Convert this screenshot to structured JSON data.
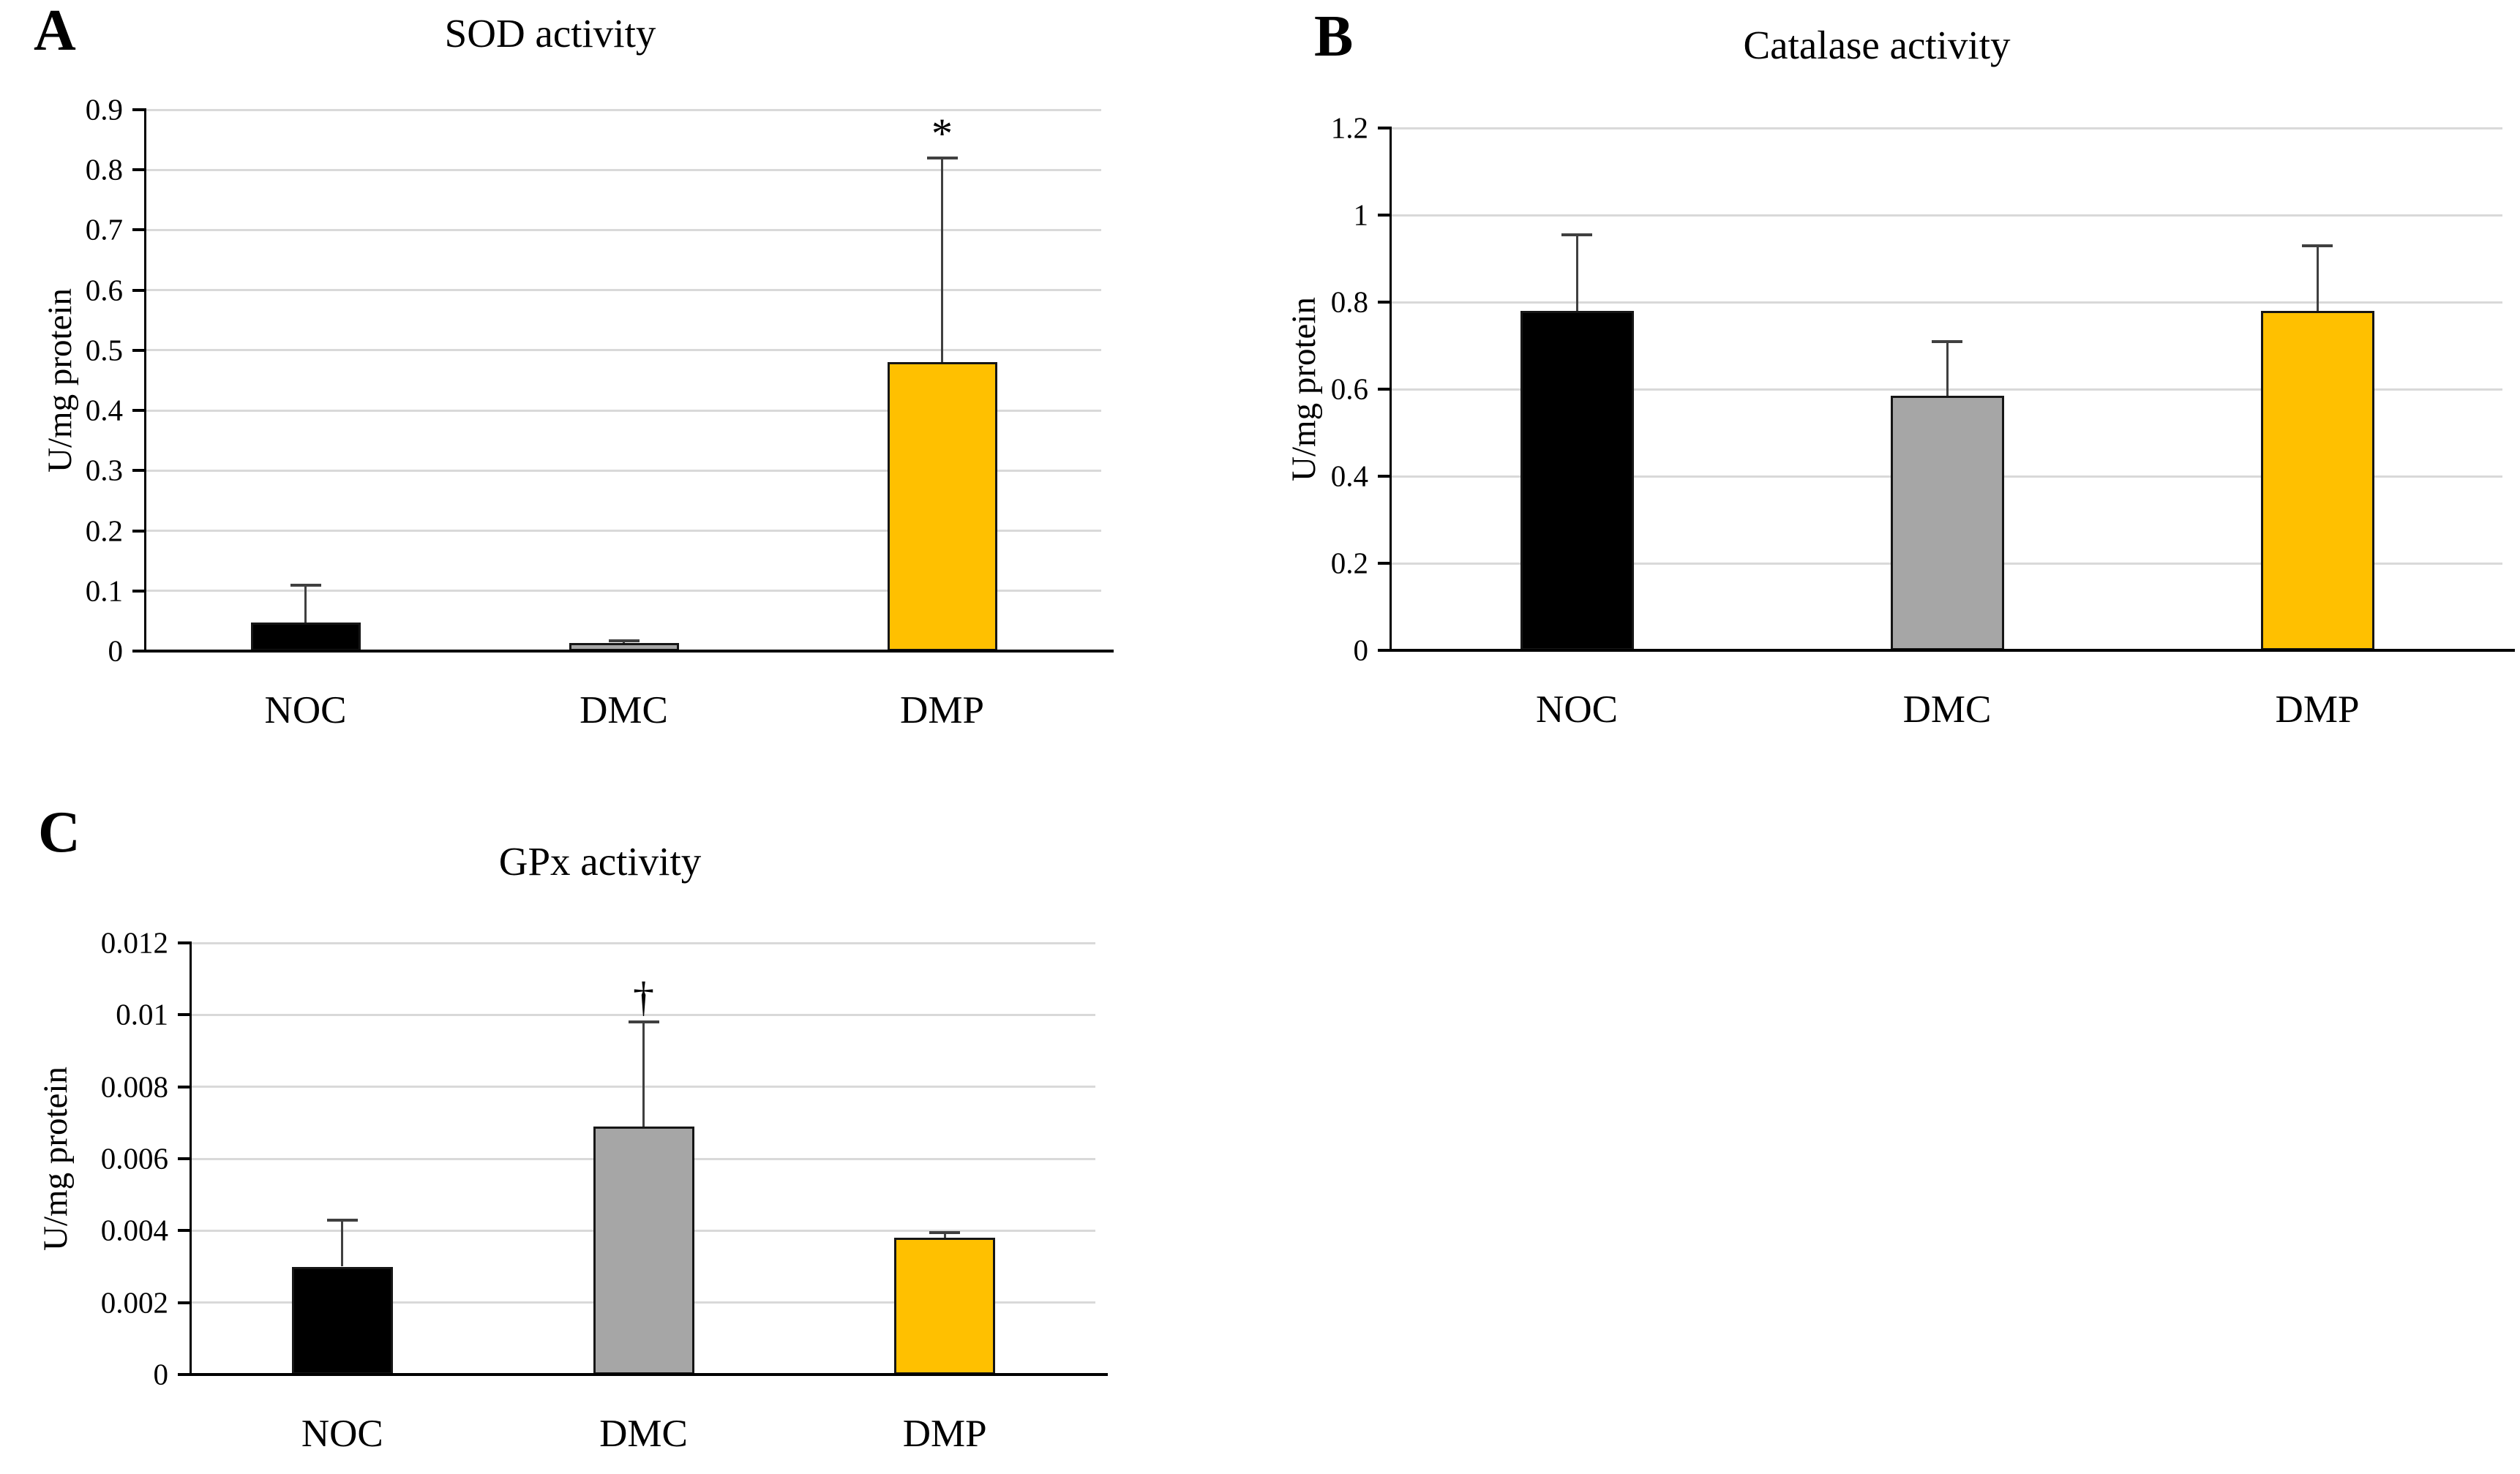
{
  "figure": {
    "background": "#ffffff",
    "gridline_color": "#d9d9d9",
    "axis_color": "#000000",
    "error_bar_color": "#404040",
    "group_colors": {
      "NOC": "#000000",
      "DMC": "#a6a6a6",
      "DMP": "#ffc000"
    }
  },
  "chart_data": [
    {
      "type": "bar",
      "panel_label": "A",
      "title": "SOD activity",
      "y_axis_label": "U/mg protein",
      "xlabel": "",
      "categories": [
        "NOC",
        "DMC",
        "DMP"
      ],
      "values": [
        0.048,
        0.013,
        0.48
      ],
      "errors_plus": [
        0.062,
        0.004,
        0.34
      ],
      "bar_colors": [
        "#000000",
        "#a6a6a6",
        "#ffc000"
      ],
      "ylim": [
        0,
        0.9
      ],
      "grid": true,
      "legend": "none",
      "yticks": [
        {
          "value": 0,
          "label": "0"
        },
        {
          "value": 0.1,
          "label": "0.1"
        },
        {
          "value": 0.2,
          "label": "0.2"
        },
        {
          "value": 0.3,
          "label": "0.3"
        },
        {
          "value": 0.4,
          "label": "0.4"
        },
        {
          "value": 0.5,
          "label": "0.5"
        },
        {
          "value": 0.6,
          "label": "0.6"
        },
        {
          "value": 0.7,
          "label": "0.7"
        },
        {
          "value": 0.8,
          "label": "0.8"
        },
        {
          "value": 0.9,
          "label": "0.9"
        }
      ],
      "annotations": [
        {
          "category_index": 2,
          "value": 0.825,
          "text": "*"
        }
      ]
    },
    {
      "type": "bar",
      "panel_label": "B",
      "title": "Catalase activity",
      "y_axis_label": "U/mg protein",
      "xlabel": "",
      "categories": [
        "NOC",
        "DMC",
        "DMP"
      ],
      "values": [
        0.78,
        0.585,
        0.78
      ],
      "errors_plus": [
        0.175,
        0.125,
        0.15
      ],
      "bar_colors": [
        "#000000",
        "#a6a6a6",
        "#ffc000"
      ],
      "ylim": [
        0,
        1.2
      ],
      "grid": true,
      "legend": "none",
      "yticks": [
        {
          "value": 0,
          "label": "0"
        },
        {
          "value": 0.2,
          "label": "0.2"
        },
        {
          "value": 0.4,
          "label": "0.4"
        },
        {
          "value": 0.6,
          "label": "0.6"
        },
        {
          "value": 0.8,
          "label": "0.8"
        },
        {
          "value": 1,
          "label": "1"
        },
        {
          "value": 1.2,
          "label": "1.2"
        }
      ],
      "annotations": []
    },
    {
      "type": "bar",
      "panel_label": "C",
      "title": "GPx activity",
      "y_axis_label": "U/mg protein",
      "xlabel": "",
      "categories": [
        "NOC",
        "DMC",
        "DMP"
      ],
      "values": [
        0.003,
        0.0069,
        0.0038
      ],
      "errors_plus": [
        0.0013,
        0.0029,
        0.00015
      ],
      "bar_colors": [
        "#000000",
        "#a6a6a6",
        "#ffc000"
      ],
      "ylim": [
        0,
        0.012
      ],
      "grid": true,
      "legend": "none",
      "yticks": [
        {
          "value": 0,
          "label": "0"
        },
        {
          "value": 0.002,
          "label": "0.002"
        },
        {
          "value": 0.004,
          "label": "0.004"
        },
        {
          "value": 0.006,
          "label": "0.006"
        },
        {
          "value": 0.008,
          "label": "0.008"
        },
        {
          "value": 0.01,
          "label": "0.01"
        },
        {
          "value": 0.012,
          "label": "0.012"
        }
      ],
      "annotations": [
        {
          "category_index": 1,
          "value": 0.0099,
          "text": "†"
        }
      ]
    }
  ]
}
